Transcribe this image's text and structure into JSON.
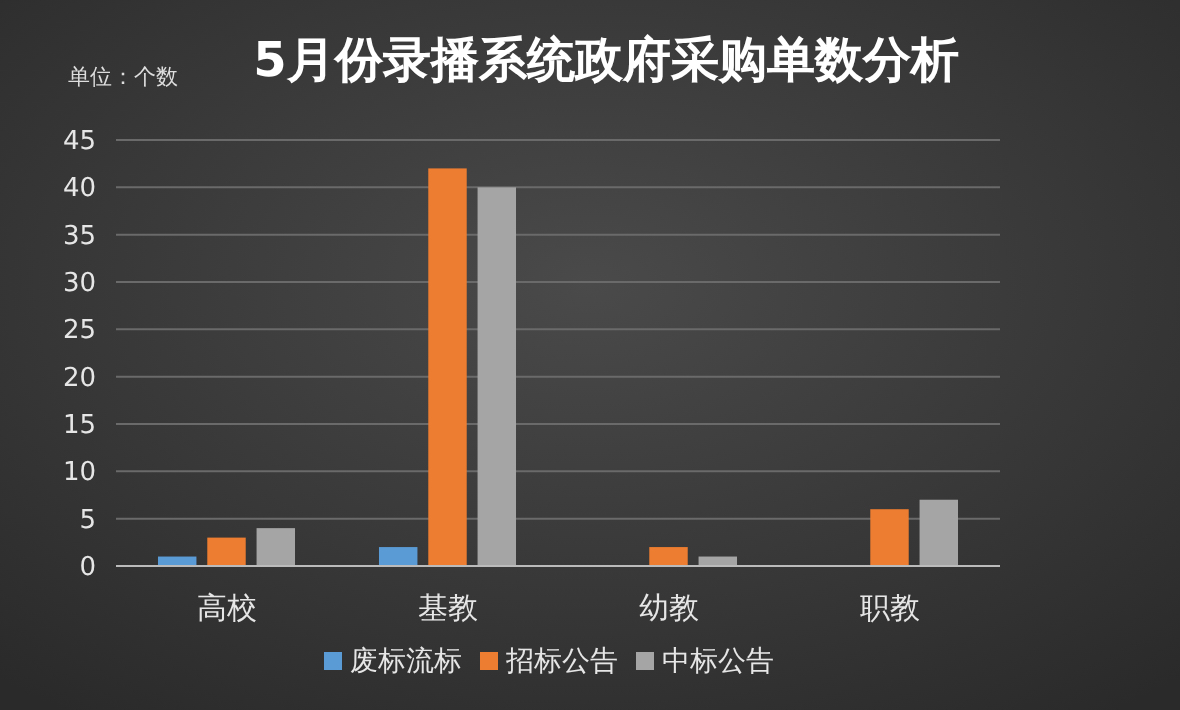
{
  "chart_data": {
    "type": "bar",
    "title": "5月份录播系统政府采购单数分析",
    "ylabel": "单位：个数",
    "categories": [
      "高校",
      "基教",
      "幼教",
      "职教"
    ],
    "series": [
      {
        "name": "废标流标",
        "color": "#5b9bd5",
        "values": [
          1,
          2,
          0,
          0
        ]
      },
      {
        "name": "招标公告",
        "color": "#ed7d31",
        "values": [
          3,
          42,
          2,
          6
        ]
      },
      {
        "name": "中标公告",
        "color": "#a5a5a5",
        "values": [
          4,
          40,
          1,
          7
        ]
      }
    ],
    "ylim": [
      0,
      45
    ],
    "yticks": [
      0,
      5,
      10,
      15,
      20,
      25,
      30,
      35,
      40,
      45
    ],
    "grid": "y",
    "legend": "bottom"
  }
}
